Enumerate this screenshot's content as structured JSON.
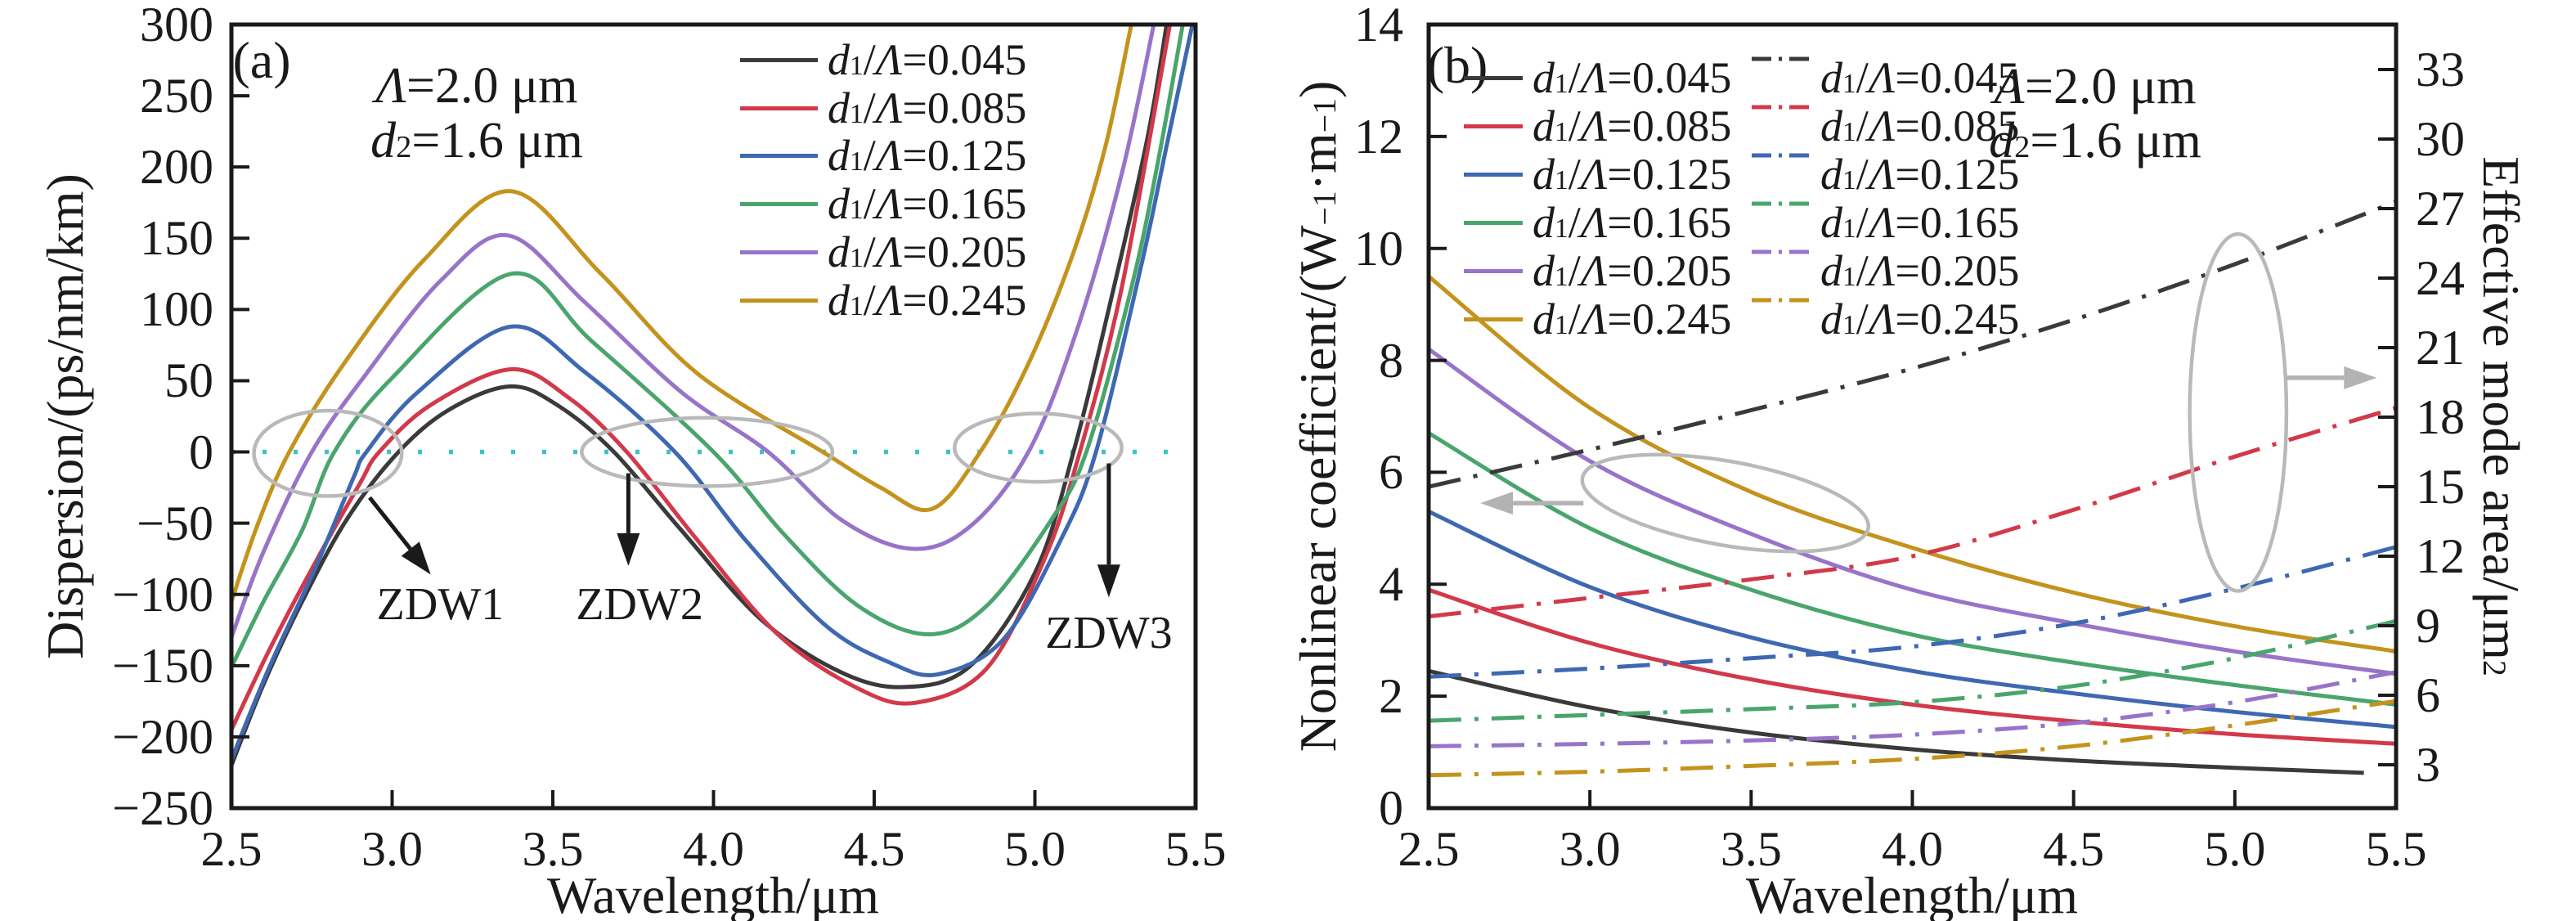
{
  "figure": {
    "background": "#ffffff"
  },
  "colors": {
    "axis": "#1a1a1a",
    "zero_line": "#3fc1c9",
    "ellipse_gray": "#b9b9b9",
    "arrow_gray": "#b3b3b3",
    "series": {
      "black": "#3a3a3a",
      "red": "#d2394a",
      "blue": "#3e68b1",
      "green": "#4aa56d",
      "purple": "#9874c9",
      "gold": "#c3931d"
    }
  },
  "chart_data": [
    {
      "id": "a",
      "type": "line",
      "panel_label": "(a)",
      "condition_annotations": [
        "Λ=2.0 μm",
        "d₂=1.6 μm"
      ],
      "xlabel": "Wavelength/μm",
      "ylabel": "Dispersion/(ps/nm/km)",
      "xlim": [
        2.5,
        5.5
      ],
      "ylim": [
        -250,
        300
      ],
      "xticks": [
        2.5,
        3.0,
        3.5,
        4.0,
        4.5,
        5.0,
        5.5
      ],
      "yticks": [
        -250,
        -200,
        -150,
        -100,
        -50,
        0,
        50,
        100,
        150,
        200,
        250,
        300
      ],
      "zero_line_y": 0,
      "series": [
        {
          "label": "d₁/Λ=0.045",
          "color_key": "black",
          "points": [
            [
              2.5,
              -220
            ],
            [
              2.6,
              -163
            ],
            [
              2.72,
              -105
            ],
            [
              2.86,
              -47
            ],
            [
              3.02,
              0
            ],
            [
              3.18,
              30
            ],
            [
              3.37,
              46
            ],
            [
              3.52,
              32
            ],
            [
              3.69,
              0
            ],
            [
              3.9,
              -55
            ],
            [
              4.15,
              -118
            ],
            [
              4.4,
              -155
            ],
            [
              4.6,
              -165
            ],
            [
              4.8,
              -150
            ],
            [
              5.0,
              -85
            ],
            [
              5.12,
              0
            ],
            [
              5.24,
              110
            ],
            [
              5.35,
              220
            ],
            [
              5.41,
              300
            ]
          ]
        },
        {
          "label": "d₁/Λ=0.085",
          "color_key": "red",
          "points": [
            [
              2.5,
              -195
            ],
            [
              2.62,
              -138
            ],
            [
              2.76,
              -78
            ],
            [
              2.9,
              -22
            ],
            [
              2.96,
              0
            ],
            [
              3.12,
              33
            ],
            [
              3.37,
              58
            ],
            [
              3.55,
              38
            ],
            [
              3.73,
              0
            ],
            [
              3.95,
              -62
            ],
            [
              4.2,
              -128
            ],
            [
              4.45,
              -166
            ],
            [
              4.63,
              -176
            ],
            [
              4.85,
              -152
            ],
            [
              5.03,
              -75
            ],
            [
              5.14,
              0
            ],
            [
              5.27,
              115
            ],
            [
              5.42,
              300
            ]
          ]
        },
        {
          "label": "d₁/Λ=0.125",
          "color_key": "blue",
          "points": [
            [
              2.5,
              -216
            ],
            [
              2.62,
              -150
            ],
            [
              2.76,
              -82
            ],
            [
              2.88,
              -18
            ],
            [
              2.92,
              0
            ],
            [
              3.08,
              42
            ],
            [
              3.37,
              88
            ],
            [
              3.6,
              56
            ],
            [
              3.88,
              0
            ],
            [
              4.1,
              -62
            ],
            [
              4.35,
              -122
            ],
            [
              4.55,
              -148
            ],
            [
              4.7,
              -156
            ],
            [
              4.9,
              -132
            ],
            [
              5.08,
              -62
            ],
            [
              5.19,
              0
            ],
            [
              5.33,
              130
            ],
            [
              5.41,
              215
            ],
            [
              5.49,
              300
            ]
          ]
        },
        {
          "label": "d₁/Λ=0.165",
          "color_key": "green",
          "points": [
            [
              2.5,
              -151
            ],
            [
              2.6,
              -105
            ],
            [
              2.72,
              -55
            ],
            [
              2.82,
              0
            ],
            [
              3.0,
              52
            ],
            [
              3.37,
              125
            ],
            [
              3.62,
              78
            ],
            [
              4.0,
              0
            ],
            [
              4.22,
              -58
            ],
            [
              4.45,
              -108
            ],
            [
              4.67,
              -128
            ],
            [
              4.85,
              -108
            ],
            [
              5.05,
              -48
            ],
            [
              5.16,
              0
            ],
            [
              5.3,
              115
            ],
            [
              5.38,
              200
            ],
            [
              5.46,
              300
            ]
          ]
        },
        {
          "label": "d₁/Λ=0.205",
          "color_key": "purple",
          "points": [
            [
              2.5,
              -130
            ],
            [
              2.6,
              -70
            ],
            [
              2.75,
              0
            ],
            [
              2.92,
              55
            ],
            [
              3.15,
              120
            ],
            [
              3.36,
              152
            ],
            [
              3.6,
              105
            ],
            [
              3.9,
              42
            ],
            [
              4.17,
              0
            ],
            [
              4.4,
              -48
            ],
            [
              4.62,
              -68
            ],
            [
              4.8,
              -52
            ],
            [
              4.98,
              0
            ],
            [
              5.13,
              85
            ],
            [
              5.27,
              195
            ],
            [
              5.37,
              300
            ]
          ]
        },
        {
          "label": "d₁/Λ=0.245",
          "color_key": "gold",
          "points": [
            [
              2.5,
              -105
            ],
            [
              2.58,
              -52
            ],
            [
              2.68,
              0
            ],
            [
              2.85,
              62
            ],
            [
              3.1,
              135
            ],
            [
              3.37,
              183
            ],
            [
              3.65,
              125
            ],
            [
              3.95,
              55
            ],
            [
              4.34,
              0
            ],
            [
              4.52,
              -25
            ],
            [
              4.68,
              -40
            ],
            [
              4.83,
              0
            ],
            [
              4.98,
              62
            ],
            [
              5.12,
              140
            ],
            [
              5.22,
              215
            ],
            [
              5.3,
              300
            ]
          ]
        }
      ],
      "zdw": [
        {
          "text": "ZDW1",
          "label_at": [
            3.15,
            -107
          ],
          "arrow": [
            [
              2.93,
              -32
            ],
            [
              3.12,
              -86
            ]
          ],
          "ellipse": [
            2.8,
            -1,
            0.23,
            30
          ]
        },
        {
          "text": "ZDW2",
          "label_at": [
            3.77,
            -107
          ],
          "arrow": [
            [
              3.735,
              -15
            ],
            [
              3.735,
              -80
            ]
          ],
          "ellipse": [
            3.98,
            0,
            0.39,
            24
          ]
        },
        {
          "text": "ZDW3",
          "label_at": [
            5.23,
            -127
          ],
          "arrow": [
            [
              5.23,
              -8
            ],
            [
              5.23,
              -102
            ]
          ],
          "ellipse": [
            5.01,
            3,
            0.26,
            24
          ]
        }
      ]
    },
    {
      "id": "b",
      "type": "line",
      "panel_label": "(b)",
      "condition_annotations": [
        "Λ=2.0 μm",
        "d₂=1.6 μm"
      ],
      "xlabel": "Wavelength/μm",
      "ylabel_left": "Nonlinear coefficient/(W⁻¹·m⁻¹)",
      "ylabel_right": "Effective mode area/μm²",
      "xlim": [
        2.5,
        5.5
      ],
      "ylim_left": [
        0,
        14
      ],
      "xticks": [
        2.5,
        3.0,
        3.5,
        4.0,
        4.5,
        5.0,
        5.5
      ],
      "yticks_left": [
        0,
        2,
        4,
        6,
        8,
        10,
        12,
        14
      ],
      "yticks_right": [
        3,
        6,
        9,
        12,
        15,
        18,
        21,
        24,
        27,
        30,
        33
      ],
      "legend_solid": [
        "d₁/Λ=0.045",
        "d₁/Λ=0.085",
        "d₁/Λ=0.125",
        "d₁/Λ=0.165",
        "d₁/Λ=0.205",
        "d₁/Λ=0.245"
      ],
      "legend_dashdot": [
        "d₁/Λ=0.045",
        "d₁/Λ=0.085",
        "d₁/Λ=0.125",
        "d₁/Λ=0.165",
        "d₁/Λ=0.205",
        "d₁/Λ=0.245"
      ],
      "series_nonlinear_coefficient": [
        {
          "label": "d₁/Λ=0.045",
          "color_key": "black",
          "axis": "left",
          "style": "solid",
          "points": [
            [
              2.5,
              2.45
            ],
            [
              3.0,
              1.8
            ],
            [
              3.5,
              1.35
            ],
            [
              4.0,
              1.05
            ],
            [
              4.5,
              0.85
            ],
            [
              5.0,
              0.72
            ],
            [
              5.4,
              0.63
            ]
          ]
        },
        {
          "label": "d₁/Λ=0.085",
          "color_key": "red",
          "axis": "left",
          "style": "solid",
          "points": [
            [
              2.5,
              3.9
            ],
            [
              3.0,
              2.95
            ],
            [
              3.5,
              2.3
            ],
            [
              4.0,
              1.85
            ],
            [
              4.5,
              1.55
            ],
            [
              5.0,
              1.32
            ],
            [
              5.5,
              1.15
            ]
          ]
        },
        {
          "label": "d₁/Λ=0.125",
          "color_key": "blue",
          "axis": "left",
          "style": "solid",
          "points": [
            [
              2.5,
              5.3
            ],
            [
              3.0,
              3.95
            ],
            [
              3.5,
              3.05
            ],
            [
              4.0,
              2.45
            ],
            [
              4.5,
              2.05
            ],
            [
              5.0,
              1.72
            ],
            [
              5.5,
              1.45
            ]
          ]
        },
        {
          "label": "d₁/Λ=0.165",
          "color_key": "green",
          "axis": "left",
          "style": "solid",
          "points": [
            [
              2.5,
              6.7
            ],
            [
              3.0,
              5.0
            ],
            [
              3.5,
              3.9
            ],
            [
              4.0,
              3.1
            ],
            [
              4.5,
              2.6
            ],
            [
              5.0,
              2.2
            ],
            [
              5.5,
              1.85
            ]
          ]
        },
        {
          "label": "d₁/Λ=0.205",
          "color_key": "purple",
          "axis": "left",
          "style": "solid",
          "points": [
            [
              2.5,
              8.2
            ],
            [
              3.0,
              6.2
            ],
            [
              3.5,
              4.9
            ],
            [
              4.0,
              3.9
            ],
            [
              4.5,
              3.3
            ],
            [
              5.0,
              2.8
            ],
            [
              5.5,
              2.4
            ]
          ]
        },
        {
          "label": "d₁/Λ=0.245",
          "color_key": "gold",
          "axis": "left",
          "style": "solid",
          "points": [
            [
              2.5,
              9.5
            ],
            [
              3.0,
              7.15
            ],
            [
              3.5,
              5.65
            ],
            [
              4.0,
              4.65
            ],
            [
              4.5,
              3.85
            ],
            [
              5.0,
              3.25
            ],
            [
              5.5,
              2.8
            ]
          ]
        }
      ],
      "series_effective_mode_area": [
        {
          "label": "d₁/Λ=0.045",
          "color_key": "black",
          "axis": "right",
          "style": "dashdot",
          "points": [
            [
              2.5,
              15.0
            ],
            [
              3.0,
              16.6
            ],
            [
              3.5,
              18.3
            ],
            [
              4.0,
              20.1
            ],
            [
              4.5,
              22.2
            ],
            [
              5.0,
              24.6
            ],
            [
              5.5,
              27.3
            ]
          ]
        },
        {
          "label": "d₁/Λ=0.085",
          "color_key": "red",
          "axis": "right",
          "style": "dashdot",
          "points": [
            [
              2.5,
              9.4
            ],
            [
              3.0,
              10.2
            ],
            [
              3.5,
              11.0
            ],
            [
              4.0,
              12.0
            ],
            [
              4.5,
              14.0
            ],
            [
              5.0,
              16.3
            ],
            [
              5.5,
              18.4
            ]
          ]
        },
        {
          "label": "d₁/Λ=0.125",
          "color_key": "blue",
          "axis": "right",
          "style": "dashdot",
          "points": [
            [
              2.5,
              6.8
            ],
            [
              3.0,
              7.15
            ],
            [
              3.5,
              7.6
            ],
            [
              4.0,
              8.1
            ],
            [
              4.5,
              9.1
            ],
            [
              5.0,
              10.6
            ],
            [
              5.5,
              12.4
            ]
          ]
        },
        {
          "label": "d₁/Λ=0.165",
          "color_key": "green",
          "axis": "right",
          "style": "dashdot",
          "points": [
            [
              2.5,
              4.9
            ],
            [
              3.0,
              5.15
            ],
            [
              3.5,
              5.4
            ],
            [
              4.0,
              5.7
            ],
            [
              4.5,
              6.4
            ],
            [
              5.0,
              7.6
            ],
            [
              5.5,
              9.2
            ]
          ]
        },
        {
          "label": "d₁/Λ=0.205",
          "color_key": "purple",
          "axis": "right",
          "style": "dashdot",
          "points": [
            [
              2.5,
              3.8
            ],
            [
              3.0,
              3.9
            ],
            [
              3.5,
              4.05
            ],
            [
              4.0,
              4.3
            ],
            [
              4.5,
              4.8
            ],
            [
              5.0,
              5.7
            ],
            [
              5.5,
              7.0
            ]
          ]
        },
        {
          "label": "d₁/Λ=0.245",
          "color_key": "gold",
          "axis": "right",
          "style": "dashdot",
          "points": [
            [
              2.5,
              2.55
            ],
            [
              3.0,
              2.7
            ],
            [
              3.5,
              2.95
            ],
            [
              4.0,
              3.25
            ],
            [
              4.5,
              3.8
            ],
            [
              5.0,
              4.7
            ],
            [
              5.5,
              5.75
            ]
          ]
        }
      ],
      "pointer_annotations": [
        {
          "axis": "left",
          "targets": "solid-curves",
          "ellipse": [
            3.42,
            5.45,
            0.45,
            0.75
          ],
          "rotate": 10,
          "arrow": [
            [
              2.98,
              5.45
            ],
            [
              2.66,
              5.45
            ]
          ]
        },
        {
          "axis": "right",
          "targets": "dashdot-curves",
          "ellipse": [
            5.01,
            18.2,
            0.15,
            7.7
          ],
          "rotate": 0,
          "arrow": [
            [
              5.16,
              19.7
            ],
            [
              5.44,
              19.7
            ]
          ]
        }
      ]
    }
  ]
}
